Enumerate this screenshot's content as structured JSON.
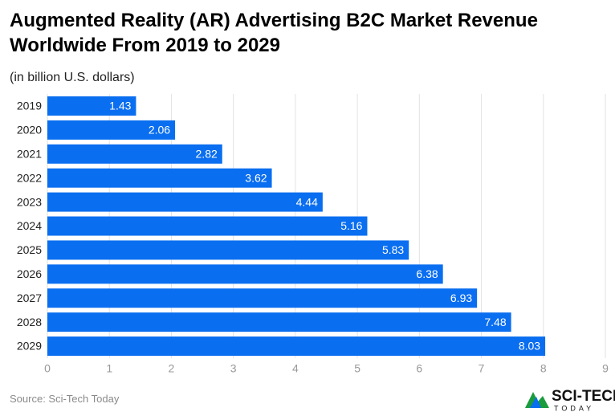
{
  "chart_data": {
    "type": "barh",
    "title": "Augmented Reality (AR) Advertising B2C Market Revenue Worldwide From 2019 to 2029",
    "subtitle": "(in billion U.S. dollars)",
    "source": "Source: Sci-Tech Today",
    "categories": [
      "2019",
      "2020",
      "2021",
      "2022",
      "2023",
      "2024",
      "2025",
      "2026",
      "2027",
      "2028",
      "2029"
    ],
    "values": [
      1.43,
      2.06,
      2.82,
      3.62,
      4.44,
      5.16,
      5.83,
      6.38,
      6.93,
      7.48,
      8.03
    ],
    "color": "#0a6ef0",
    "xlim": [
      0,
      9
    ],
    "xticks": [
      0,
      1,
      2,
      3,
      4,
      5,
      6,
      7,
      8,
      9
    ],
    "grid": true
  },
  "brand": {
    "name": "SCI-TECH",
    "tagline": "TODAY"
  }
}
